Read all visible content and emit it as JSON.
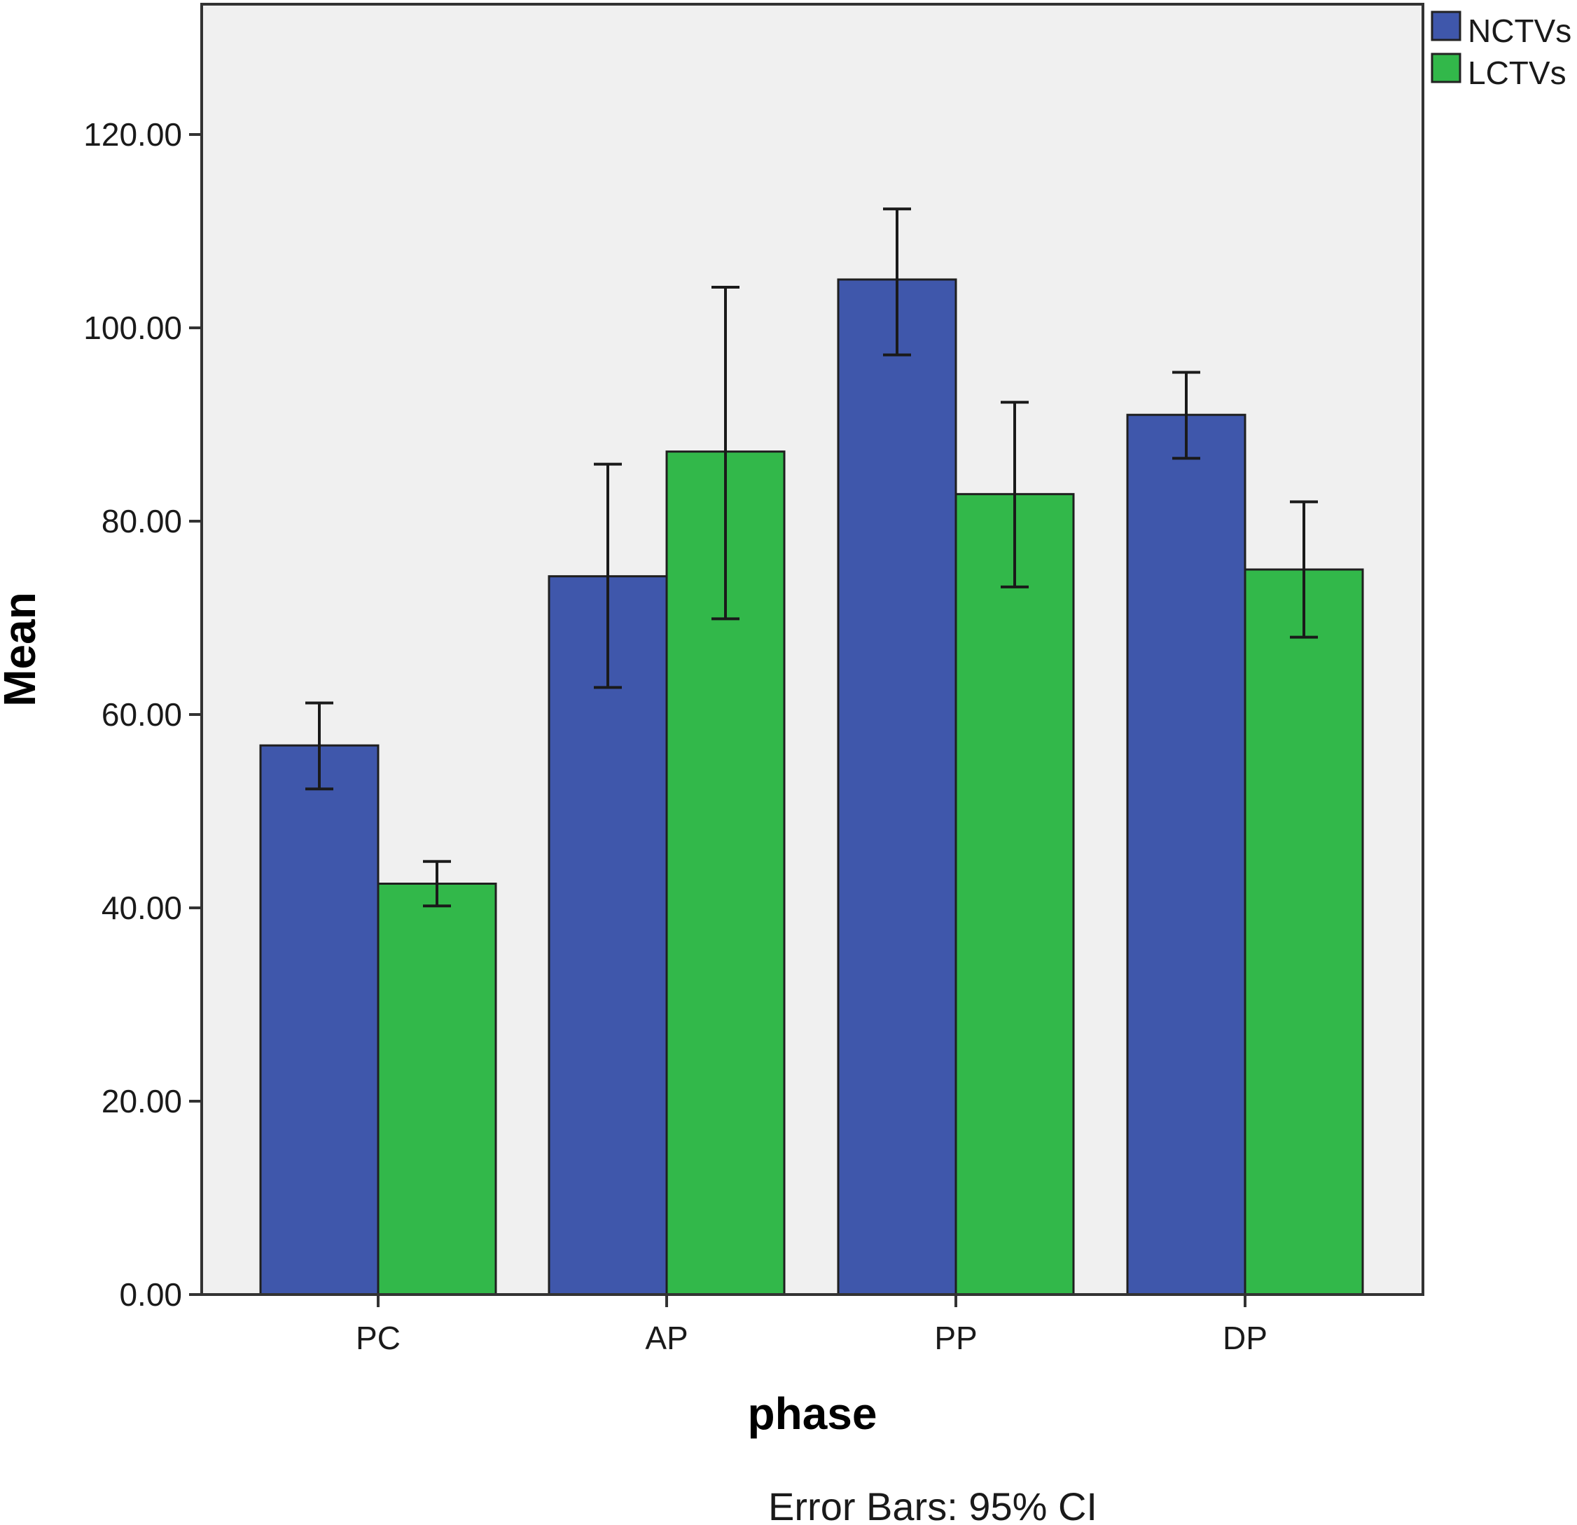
{
  "chart_data": {
    "type": "bar",
    "categories": [
      "PC",
      "AP",
      "PP",
      "DP"
    ],
    "series": [
      {
        "name": "NCTVs",
        "color": "#3f57ab",
        "values": [
          56.8,
          74.3,
          105.0,
          91.0
        ],
        "ci_lower": [
          52.3,
          62.8,
          97.2,
          86.5
        ],
        "ci_upper": [
          61.2,
          85.9,
          112.3,
          95.4
        ]
      },
      {
        "name": "LCTVs",
        "color": "#32b84a",
        "values": [
          42.5,
          87.2,
          82.8,
          75.0
        ],
        "ci_lower": [
          40.2,
          69.9,
          73.2,
          68.0
        ],
        "ci_upper": [
          44.8,
          104.2,
          92.3,
          82.0
        ]
      }
    ],
    "ylim": [
      0,
      134
    ],
    "yticks": [
      "0.00",
      "20.00",
      "40.00",
      "60.00",
      "80.00",
      "100.00",
      "120.00"
    ],
    "ytick_values": [
      0,
      20,
      40,
      60,
      80,
      100,
      120
    ],
    "xlabel": "phase",
    "ylabel": "Mean",
    "footnote": "Error Bars: 95% CI",
    "legend_position": "top-right",
    "plot_background": "#f0f0f0",
    "grid": false
  }
}
